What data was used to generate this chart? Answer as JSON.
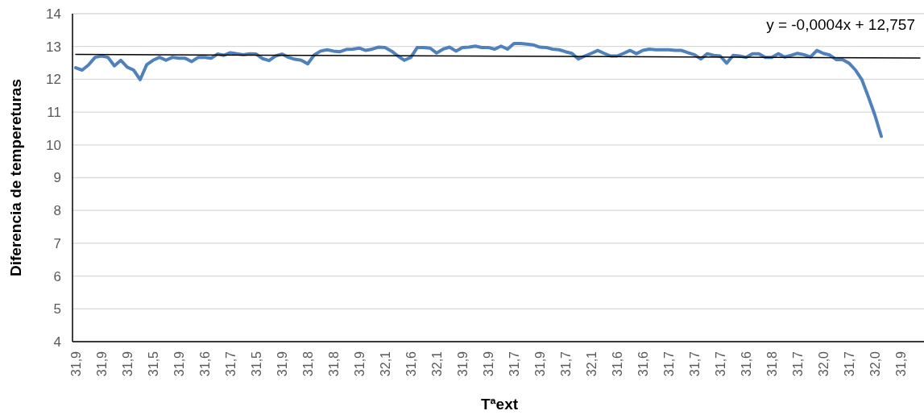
{
  "chart_data": {
    "type": "line",
    "xlabel": "Tªext",
    "ylabel": "Diferencia de tempereturas",
    "ylim": [
      4,
      14
    ],
    "yticks": [
      4,
      5,
      6,
      7,
      8,
      9,
      10,
      11,
      12,
      13,
      14
    ],
    "grid": "y",
    "marker": "none",
    "line_style": "solid",
    "annotations": [
      "y = -0,0004x + 12,757"
    ],
    "categories": [
      "31,9",
      null,
      null,
      null,
      "31,9",
      null,
      null,
      null,
      "31,9",
      null,
      null,
      null,
      "31,5",
      null,
      null,
      null,
      "31,9",
      null,
      null,
      null,
      "31,6",
      null,
      null,
      null,
      "31,7",
      null,
      null,
      null,
      "31,5",
      null,
      null,
      null,
      "31,9",
      null,
      null,
      null,
      "31,8",
      null,
      null,
      null,
      "31,8",
      null,
      null,
      null,
      "31,9",
      null,
      null,
      null,
      "32,1",
      null,
      null,
      null,
      "31,6",
      null,
      null,
      null,
      "32,1",
      null,
      null,
      null,
      "31,9",
      null,
      null,
      null,
      "31,9",
      null,
      null,
      null,
      "31,7",
      null,
      null,
      null,
      "31,9",
      null,
      null,
      null,
      "31,7",
      null,
      null,
      null,
      "32,1",
      null,
      null,
      null,
      "31,6",
      null,
      null,
      null,
      "31,6",
      null,
      null,
      null,
      "31,7",
      null,
      null,
      null,
      "31,7",
      null,
      null,
      null,
      "31,7",
      null,
      null,
      null,
      "31,6",
      null,
      null,
      null,
      "31,8",
      null,
      null,
      null,
      "31,7",
      null,
      null,
      null,
      "32,0",
      null,
      null,
      null,
      "31,7",
      null,
      null,
      null,
      "32,0",
      null,
      null,
      null,
      "31,9",
      null,
      null,
      null
    ],
    "series": [
      {
        "color": "#4f81bd",
        "values": [
          12.35,
          12.28,
          12.44,
          12.67,
          12.71,
          12.67,
          12.41,
          12.58,
          12.37,
          12.28,
          11.99,
          12.44,
          12.58,
          12.67,
          12.58,
          12.67,
          12.64,
          12.64,
          12.54,
          12.67,
          12.67,
          12.64,
          12.77,
          12.73,
          12.81,
          12.78,
          12.75,
          12.78,
          12.77,
          12.63,
          12.57,
          12.71,
          12.77,
          12.67,
          12.61,
          12.58,
          12.47,
          12.74,
          12.86,
          12.9,
          12.86,
          12.84,
          12.91,
          12.92,
          12.95,
          12.88,
          12.92,
          12.98,
          12.97,
          12.86,
          12.71,
          12.58,
          12.67,
          12.97,
          12.97,
          12.95,
          12.8,
          12.92,
          12.98,
          12.86,
          12.97,
          12.98,
          13.01,
          12.97,
          12.97,
          12.92,
          13.01,
          12.92,
          13.09,
          13.09,
          13.07,
          13.05,
          12.98,
          12.97,
          12.92,
          12.9,
          12.84,
          12.79,
          12.62,
          12.71,
          12.79,
          12.88,
          12.79,
          12.71,
          12.71,
          12.79,
          12.88,
          12.78,
          12.88,
          12.92,
          12.9,
          12.9,
          12.9,
          12.88,
          12.88,
          12.81,
          12.75,
          12.62,
          12.78,
          12.73,
          12.71,
          12.49,
          12.73,
          12.71,
          12.67,
          12.78,
          12.78,
          12.67,
          12.67,
          12.78,
          12.68,
          12.73,
          12.79,
          12.75,
          12.68,
          12.88,
          12.79,
          12.74,
          12.6,
          12.6,
          12.49,
          12.28,
          11.98,
          11.46,
          10.91,
          10.26,
          null,
          null,
          null,
          null,
          null,
          null
        ]
      },
      {
        "type": "line",
        "color": "#000000",
        "values": [
          12.76,
          null,
          null,
          null,
          null,
          null,
          null,
          null,
          null,
          null,
          null,
          null,
          null,
          null,
          null,
          null,
          null,
          null,
          null,
          null,
          null,
          null,
          null,
          null,
          null,
          null,
          null,
          null,
          null,
          null,
          null,
          null,
          null,
          null,
          null,
          null,
          null,
          null,
          null,
          null,
          null,
          null,
          null,
          null,
          null,
          null,
          null,
          null,
          null,
          null,
          null,
          null,
          null,
          null,
          null,
          null,
          null,
          null,
          null,
          null,
          null,
          null,
          null,
          null,
          null,
          null,
          null,
          null,
          null,
          null,
          null,
          null,
          null,
          null,
          null,
          null,
          null,
          null,
          null,
          null,
          null,
          null,
          null,
          null,
          null,
          null,
          null,
          null,
          null,
          null,
          null,
          null,
          null,
          null,
          null,
          null,
          null,
          null,
          null,
          null,
          null,
          null,
          null,
          null,
          null,
          null,
          null,
          null,
          null,
          null,
          null,
          null,
          null,
          null,
          null,
          null,
          null,
          null,
          null,
          null,
          null,
          null,
          null,
          null,
          null,
          null,
          null,
          null,
          null,
          null,
          null,
          12.65
        ]
      }
    ]
  }
}
